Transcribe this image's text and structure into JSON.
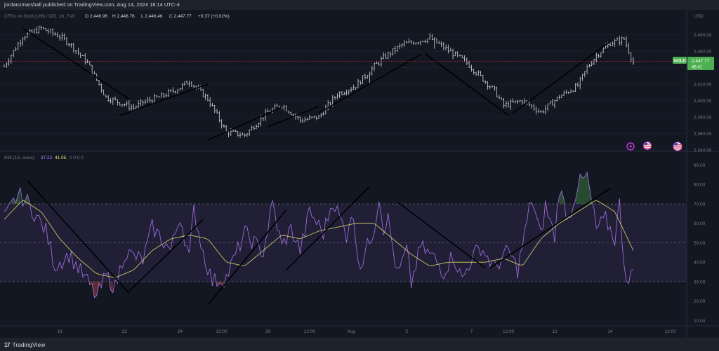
{
  "header": {
    "attribution": "jordanzmarshall published on TradingView.com, Aug 14, 2024 18:14 UTC-4"
  },
  "legend_price": {
    "symbol": "CFDs on Gold (US$ / OZ), 1h, TVC",
    "open": "O 2,446.96",
    "high": "H 2,448.76",
    "low": "L 2,446.46",
    "close": "C 2,447.77",
    "change": "+0.37 (+0.02%)"
  },
  "legend_rsi": {
    "name": "RSI (14, close)",
    "value1": "37.22",
    "value2": "41.05",
    "extra": "0 0 0 0"
  },
  "price_axis": {
    "currency": "USD",
    "ticks": [
      "2,480.00",
      "2,460.00",
      "2,440.00",
      "2,420.00",
      "2,400.00",
      "2,380.00",
      "2,360.00",
      "2,340.00"
    ]
  },
  "price_label": {
    "symbol": "GOLD",
    "price": "2,447.77",
    "countdown": "45:41"
  },
  "rsi_axis": {
    "ticks": [
      "90.00",
      "80.00",
      "70.00",
      "60.00",
      "50.00",
      "40.00",
      "30.00",
      "20.00",
      "10.00"
    ]
  },
  "time_axis": {
    "ticks": [
      "18",
      "22",
      "24",
      "12:00",
      "29",
      "12:00",
      "Aug",
      "5",
      "7",
      "12:00",
      "12",
      "14",
      "12:00"
    ]
  },
  "footer": {
    "brand": "TradingView",
    "logo": "17"
  },
  "colors": {
    "background": "#131722",
    "candle": "#d1d4dc",
    "rsi_line": "#9c6ad6",
    "rsi_ma": "#e3e36b",
    "rsi_band": "#7e57c2",
    "current_price": "#4caf50",
    "trendline": "#000000"
  },
  "chart_data": [
    {
      "type": "candlestick",
      "title": "CFDs on Gold (US$ / OZ), 1h, TVC",
      "ylim": [
        2340,
        2490
      ],
      "current_price": 2447.77,
      "anchors_t": [
        0,
        4,
        8,
        12,
        14,
        18,
        22,
        28,
        30,
        34,
        38,
        40,
        44,
        48,
        52,
        55,
        57,
        60,
        64,
        68,
        72,
        76,
        80,
        82,
        86,
        92,
        100,
        106,
        108,
        112,
        116,
        120,
        124,
        126,
        128,
        131,
        134,
        136
      ],
      "anchors_price": [
        2442,
        2478,
        2488,
        2478,
        2470,
        2446,
        2404,
        2391,
        2398,
        2405,
        2416,
        2424,
        2402,
        2362,
        2358,
        2375,
        2386,
        2395,
        2376,
        2380,
        2408,
        2418,
        2442,
        2452,
        2468,
        2476,
        2446,
        2412,
        2394,
        2400,
        2386,
        2405,
        2418,
        2440,
        2455,
        2470,
        2475,
        2446
      ],
      "price_trendlines": [
        {
          "from": [
            4,
            2488
          ],
          "to": [
            27,
            2402
          ]
        },
        {
          "from": [
            25,
            2382
          ],
          "to": [
            44,
            2420
          ]
        },
        {
          "from": [
            44,
            2352
          ],
          "to": [
            60,
            2392
          ]
        },
        {
          "from": [
            57,
            2368
          ],
          "to": [
            68,
            2393
          ]
        },
        {
          "from": [
            68,
            2385
          ],
          "to": [
            90,
            2456
          ]
        },
        {
          "from": [
            91,
            2457
          ],
          "to": [
            109,
            2382
          ]
        },
        {
          "from": [
            110,
            2385
          ],
          "to": [
            131,
            2472
          ]
        }
      ]
    },
    {
      "type": "line",
      "title": "RSI (14, close)",
      "ylim": [
        8,
        92
      ],
      "bands": {
        "upper": 70,
        "middle": 50,
        "lower": 30
      },
      "anchors_t": [
        0,
        3,
        5,
        9,
        11,
        14,
        18,
        20,
        22,
        24,
        26,
        30,
        32,
        36,
        38,
        40,
        41,
        43,
        45,
        48,
        52,
        56,
        58,
        60,
        62,
        64,
        66,
        69,
        71,
        74,
        75,
        77,
        80,
        81,
        82,
        83,
        85,
        87,
        88,
        90,
        93,
        95,
        97,
        99,
        101,
        103,
        106,
        109,
        111,
        114,
        116,
        117,
        119,
        120,
        122,
        124,
        126,
        128,
        130,
        132,
        133,
        134,
        135,
        136
      ],
      "anchors_rsi": [
        62,
        75,
        71,
        56,
        38,
        44,
        30,
        22,
        33,
        27,
        45,
        41,
        58,
        46,
        64,
        42,
        67,
        45,
        30,
        32,
        55,
        45,
        70,
        48,
        57,
        46,
        66,
        55,
        72,
        54,
        66,
        38,
        58,
        74,
        58,
        62,
        33,
        46,
        29,
        48,
        42,
        35,
        44,
        31,
        42,
        48,
        37,
        46,
        36,
        73,
        53,
        69,
        53,
        78,
        62,
        80,
        84,
        57,
        62,
        52,
        70,
        40,
        28,
        37
      ],
      "ma_anchors_t": [
        0,
        4,
        8,
        12,
        16,
        20,
        24,
        28,
        32,
        36,
        40,
        44,
        48,
        52,
        56,
        60,
        64,
        68,
        72,
        76,
        80,
        84,
        88,
        92,
        96,
        100,
        104,
        108,
        112,
        116,
        120,
        124,
        128,
        132,
        136
      ],
      "ma_anchors_rsi": [
        62,
        72,
        66,
        52,
        42,
        34,
        32,
        36,
        46,
        52,
        54,
        52,
        40,
        38,
        46,
        54,
        52,
        56,
        58,
        60,
        60,
        52,
        44,
        38,
        40,
        40,
        40,
        42,
        38,
        52,
        60,
        66,
        72,
        66,
        46
      ],
      "rsi_trendlines": [
        {
          "from": [
            5,
            82
          ],
          "to": [
            27,
            24
          ]
        },
        {
          "from": [
            27,
            25
          ],
          "to": [
            43,
            62
          ]
        },
        {
          "from": [
            44,
            18
          ],
          "to": [
            61,
            67
          ]
        },
        {
          "from": [
            61,
            36
          ],
          "to": [
            79,
            79
          ]
        },
        {
          "from": [
            85,
            71
          ],
          "to": [
            104,
            37
          ]
        },
        {
          "from": [
            105,
            37
          ],
          "to": [
            131,
            78
          ]
        }
      ]
    }
  ]
}
